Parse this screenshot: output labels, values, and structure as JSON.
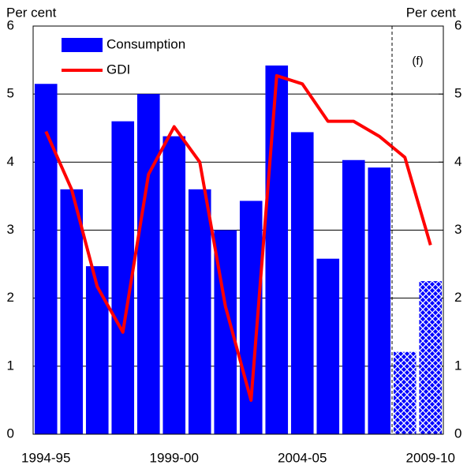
{
  "chart_data": {
    "type": "bar_line",
    "y_label": "Per cent",
    "y2_label": "Per cent",
    "annotation": "(f)",
    "categories": [
      "1994-95",
      null,
      null,
      null,
      null,
      "1999-00",
      null,
      null,
      null,
      null,
      "2004-05",
      null,
      null,
      null,
      null,
      "2009-10"
    ],
    "series": [
      {
        "name": "Consumption",
        "type": "bar",
        "color": "#0000ff",
        "values": [
          5.15,
          3.6,
          2.47,
          4.6,
          5.0,
          4.38,
          3.6,
          3.0,
          3.43,
          5.42,
          4.44,
          2.58,
          4.03,
          3.92,
          1.21,
          2.25
        ]
      },
      {
        "name": "GDI",
        "type": "line",
        "color": "#ff0000",
        "values": [
          4.45,
          3.6,
          2.17,
          1.5,
          3.82,
          4.52,
          4.0,
          1.88,
          0.5,
          5.27,
          5.15,
          4.6,
          4.6,
          4.38,
          4.07,
          2.78
        ]
      }
    ],
    "forecast_start": 14,
    "ylim": [
      0,
      6
    ],
    "yticks": [
      0,
      1,
      2,
      3,
      4,
      5,
      6
    ],
    "y2lim": [
      0,
      6
    ],
    "y2ticks": [
      0,
      1,
      2,
      3,
      4,
      5,
      6
    ],
    "grid": true,
    "legend": "upper left"
  }
}
